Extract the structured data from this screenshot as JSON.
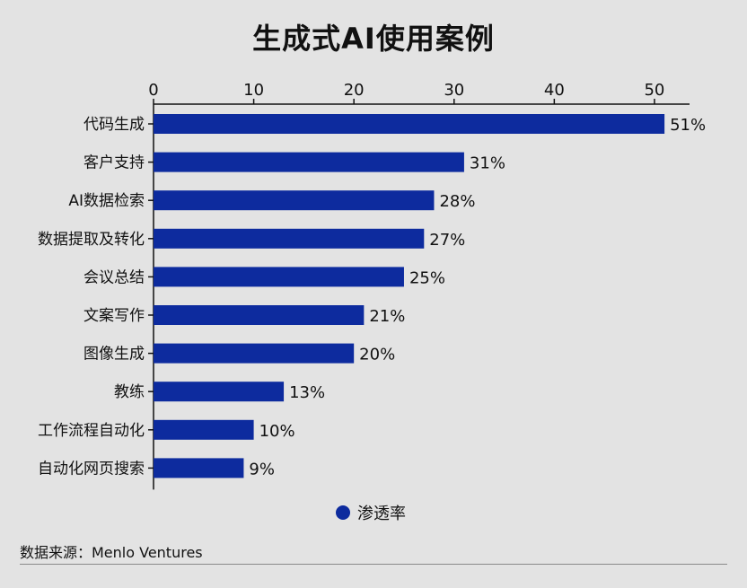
{
  "chart_data": {
    "type": "bar",
    "orientation": "horizontal",
    "title": "生成式AI使用案例",
    "categories": [
      "代码生成",
      "客户支持",
      "AI数据检索",
      "数据提取及转化",
      "会议总结",
      "文案写作",
      "图像生成",
      "教练",
      "工作流程自动化",
      "自动化网页搜索"
    ],
    "series": [
      {
        "name": "渗透率",
        "values": [
          51,
          31,
          28,
          27,
          25,
          21,
          20,
          13,
          10,
          9
        ]
      }
    ],
    "value_labels": [
      "51%",
      "31%",
      "28%",
      "27%",
      "25%",
      "21%",
      "20%",
      "13%",
      "10%",
      "9%"
    ],
    "x_axis_position": "top",
    "xticks": [
      0,
      10,
      20,
      30,
      40,
      50
    ],
    "xlim": [
      0,
      53.5
    ],
    "grid": false,
    "legend_position": "bottom-center",
    "bar_color": "#0d2b9e",
    "source": "数据来源：Menlo Ventures"
  }
}
